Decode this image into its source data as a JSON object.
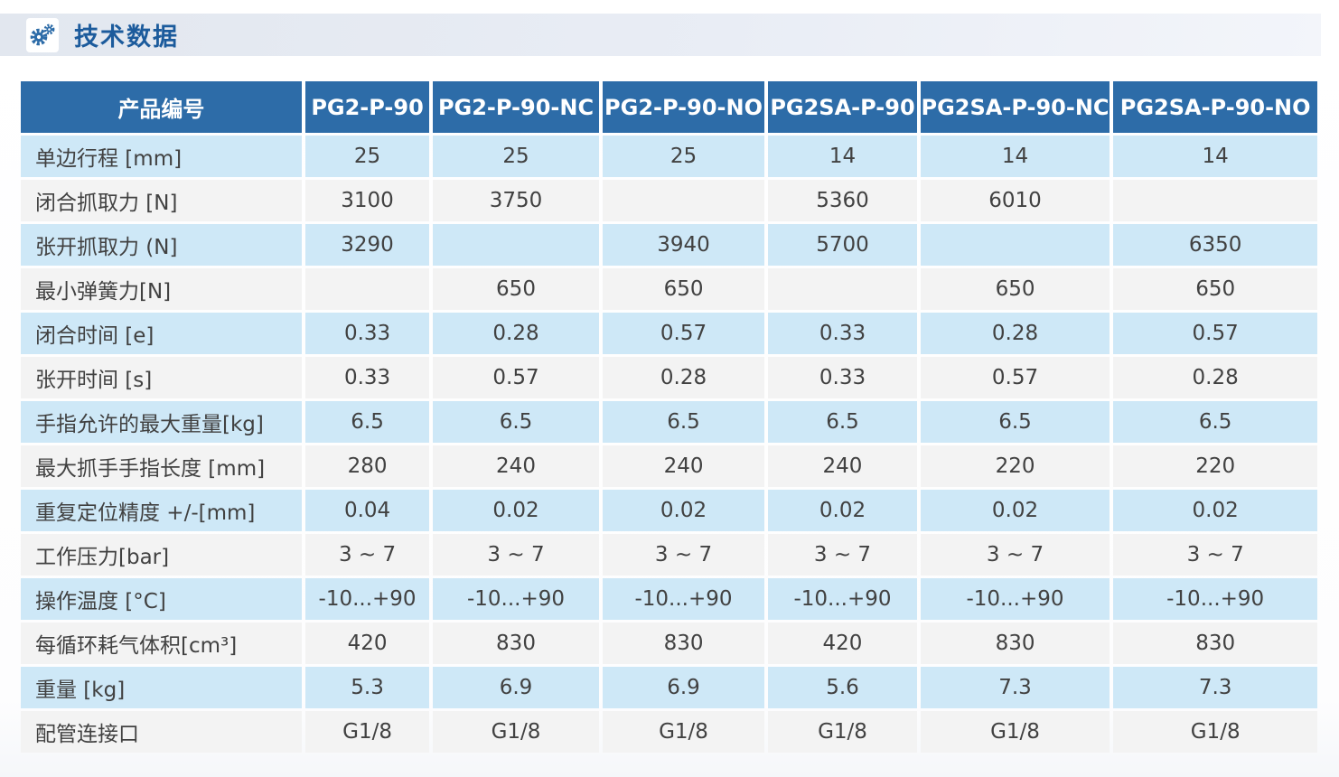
{
  "section": {
    "title": "技术数据",
    "icon": "gears-icon"
  },
  "colors": {
    "header_blue": "#2d6ca8",
    "row_light_blue": "#cee8f7",
    "row_light_gray": "#f3f3f3",
    "title_blue": "#1c5b9c",
    "band_gray": "#e7ebf3",
    "cell_text": "#414141"
  },
  "table": {
    "header": [
      "产品编号",
      "PG2-P-90",
      "PG2-P-90-NC",
      "PG2-P-90-NO",
      "PG2SA-P-90",
      "PG2SA-P-90-NC",
      "PG2SA-P-90-NO"
    ],
    "rows": [
      {
        "label": "单边行程 [mm]",
        "values": [
          "25",
          "25",
          "25",
          "14",
          "14",
          "14"
        ]
      },
      {
        "label": "闭合抓取力 [N]",
        "values": [
          "3100",
          "3750",
          "",
          "5360",
          "6010",
          ""
        ]
      },
      {
        "label": "张开抓取力 (N]",
        "values": [
          "3290",
          "",
          "3940",
          "5700",
          "",
          "6350"
        ]
      },
      {
        "label": "最小弹簧力[N]",
        "values": [
          "",
          "650",
          "650",
          "",
          "650",
          "650"
        ]
      },
      {
        "label": "闭合时间 [e]",
        "values": [
          "0.33",
          "0.28",
          "0.57",
          "0.33",
          "0.28",
          "0.57"
        ]
      },
      {
        "label": "张开时间 [s]",
        "values": [
          "0.33",
          "0.57",
          "0.28",
          "0.33",
          "0.57",
          "0.28"
        ]
      },
      {
        "label": "手指允许的最大重量[kg]",
        "values": [
          "6.5",
          "6.5",
          "6.5",
          "6.5",
          "6.5",
          "6.5"
        ]
      },
      {
        "label": "最大抓手手指长度 [mm]",
        "values": [
          "280",
          "240",
          "240",
          "240",
          "220",
          "220"
        ]
      },
      {
        "label": "重复定位精度 +/-[mm]",
        "values": [
          "0.04",
          "0.02",
          "0.02",
          "0.02",
          "0.02",
          "0.02"
        ]
      },
      {
        "label": "工作压力[bar]",
        "values": [
          "3 ~ 7",
          "3 ~ 7",
          "3 ~ 7",
          "3 ~ 7",
          "3 ~ 7",
          "3 ~ 7"
        ]
      },
      {
        "label": "操作温度 [°C]",
        "values": [
          "-10...+90",
          "-10...+90",
          "-10...+90",
          "-10...+90",
          "-10...+90",
          "-10...+90"
        ]
      },
      {
        "label": "每循环耗气体积[cm³]",
        "values": [
          "420",
          "830",
          "830",
          "420",
          "830",
          "830"
        ]
      },
      {
        "label": "重量 [kg]",
        "values": [
          "5.3",
          "6.9",
          "6.9",
          "5.6",
          "7.3",
          "7.3"
        ]
      },
      {
        "label": "配管连接口",
        "values": [
          "G1/8",
          "G1/8",
          "G1/8",
          "G1/8",
          "G1/8",
          "G1/8"
        ]
      }
    ]
  }
}
